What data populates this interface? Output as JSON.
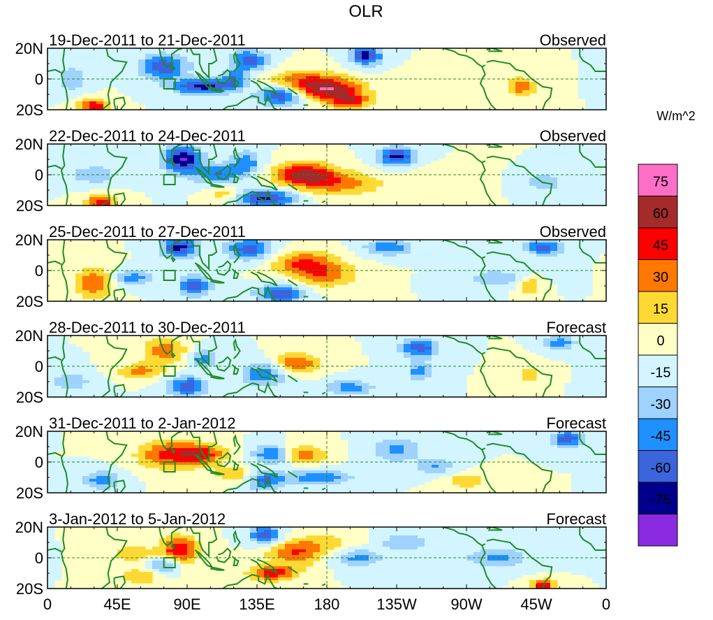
{
  "chart_data": {
    "type": "heatmap",
    "title": "OLR",
    "units_label": "W/m^2",
    "panels": [
      {
        "period": "19-Dec-2011 to 21-Dec-2011",
        "kind": "Observed"
      },
      {
        "period": "22-Dec-2011 to 24-Dec-2011",
        "kind": "Observed"
      },
      {
        "period": "25-Dec-2011 to 27-Dec-2011",
        "kind": "Observed"
      },
      {
        "period": "28-Dec-2011 to 30-Dec-2011",
        "kind": "Forecast"
      },
      {
        "period": "31-Dec-2011 to 2-Jan-2012",
        "kind": "Forecast"
      },
      {
        "period": "3-Jan-2012 to 5-Jan-2012",
        "kind": "Forecast"
      }
    ],
    "y_ticks": [
      "20N",
      "0",
      "20S"
    ],
    "x_ticks": [
      "0",
      "45E",
      "90E",
      "135E",
      "180",
      "135W",
      "90W",
      "45W",
      "0"
    ],
    "xlim": [
      0,
      360
    ],
    "ylim": [
      -20,
      20
    ],
    "colorbar": {
      "labels": [
        "75",
        "60",
        "45",
        "30",
        "15",
        "0",
        "-15",
        "-30",
        "-45",
        "-60",
        "-75"
      ],
      "colors": [
        "#ff6ec7",
        "#a52a2a",
        "#ff0000",
        "#ff7800",
        "#ffd933",
        "#ffffc6",
        "#d2f5ff",
        "#a0d2ff",
        "#1e90ff",
        "#3c64dc",
        "#00008c",
        "#8a2be2"
      ]
    }
  }
}
